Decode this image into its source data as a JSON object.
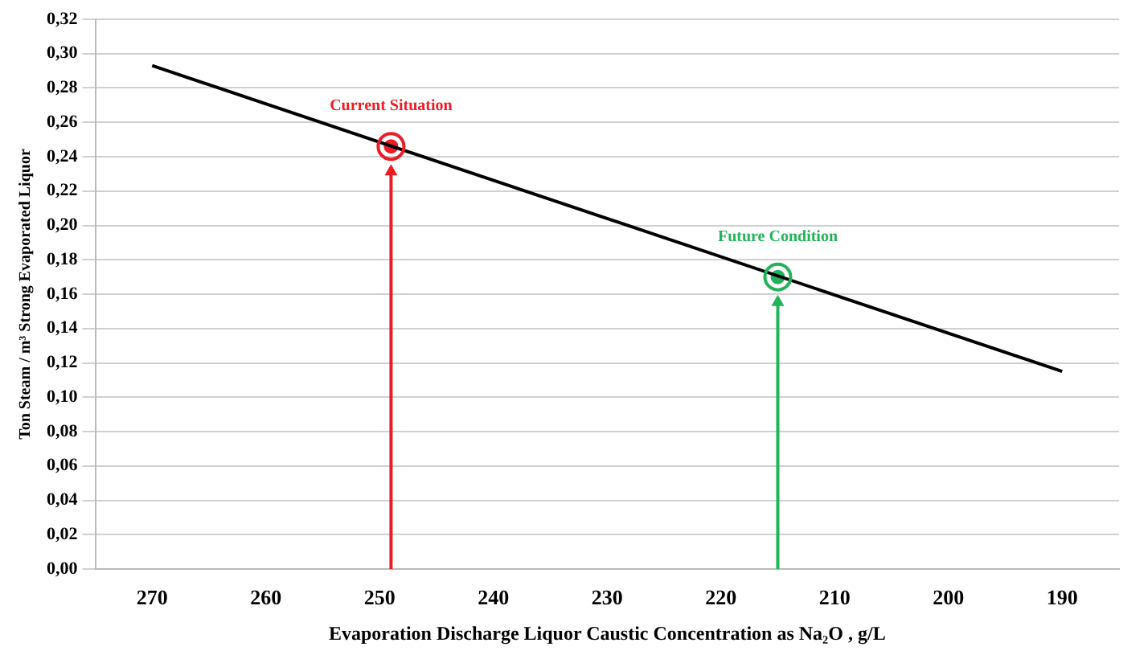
{
  "chart_data": {
    "type": "line",
    "xlabel": "Evaporation Discharge Liquor Caustic Concentration as Na₂O , g/L",
    "ylabel": "Ton Steam / m³ Strong Evaporated Liquor",
    "xlim": [
      275,
      185
    ],
    "xticks": [
      270,
      260,
      250,
      240,
      230,
      220,
      210,
      200,
      190
    ],
    "ylim": [
      0,
      0.32
    ],
    "yticks": [
      {
        "value": 0,
        "label": "0,00"
      },
      {
        "value": 0.02,
        "label": "0,02"
      },
      {
        "value": 0.04,
        "label": "0,04"
      },
      {
        "value": 0.06,
        "label": "0,06"
      },
      {
        "value": 0.08,
        "label": "0,08"
      },
      {
        "value": 0.1,
        "label": "0,10"
      },
      {
        "value": 0.12,
        "label": "0,12"
      },
      {
        "value": 0.14,
        "label": "0,14"
      },
      {
        "value": 0.16,
        "label": "0,16"
      },
      {
        "value": 0.18,
        "label": "0,18"
      },
      {
        "value": 0.2,
        "label": "0,20"
      },
      {
        "value": 0.22,
        "label": "0,22"
      },
      {
        "value": 0.24,
        "label": "0,24"
      },
      {
        "value": 0.26,
        "label": "0,26"
      },
      {
        "value": 0.28,
        "label": "0,28"
      },
      {
        "value": 0.3,
        "label": "0,30"
      },
      {
        "value": 0.32,
        "label": "0,32"
      }
    ],
    "grid": "y",
    "legend": false,
    "marker": "none",
    "series": [
      {
        "type": "line",
        "color": "#000000",
        "x": [
          270,
          190
        ],
        "values": [
          0.293,
          0.115
        ]
      },
      {
        "type": "scatter",
        "color": "#ee1c25",
        "marker": "circle",
        "x": [
          249
        ],
        "values": [
          0.246
        ]
      },
      {
        "type": "scatter",
        "color": "#22b35a",
        "marker": "circle",
        "x": [
          215
        ],
        "values": [
          0.17
        ]
      }
    ],
    "annotations": [
      {
        "text": "Current Situation",
        "x": 249,
        "y": 0.246
      },
      {
        "text": "Future Condition",
        "x": 215,
        "y": 0.17
      }
    ]
  }
}
